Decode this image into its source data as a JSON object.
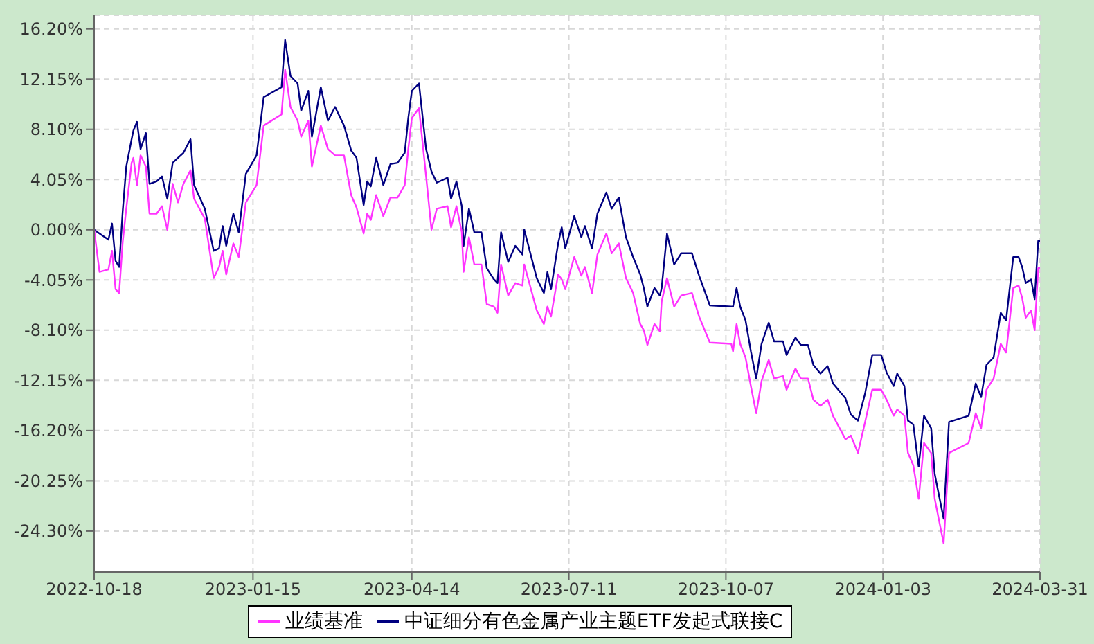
{
  "chart_data": {
    "type": "line",
    "x": [
      "2022-10-18",
      "2022-10-21",
      "2022-10-26",
      "2022-10-28",
      "2022-10-30",
      "2022-11-01",
      "2022-11-03",
      "2022-11-05",
      "2022-11-08",
      "2022-11-09",
      "2022-11-11",
      "2022-11-13",
      "2022-11-16",
      "2022-11-18",
      "2022-11-22",
      "2022-11-25",
      "2022-11-28",
      "2022-12-01",
      "2022-12-04",
      "2022-12-07",
      "2022-12-11",
      "2022-12-13",
      "2022-12-19",
      "2022-12-24",
      "2022-12-27",
      "2022-12-29",
      "2022-12-31",
      "2023-01-04",
      "2023-01-07",
      "2023-01-11",
      "2023-01-17",
      "2023-01-21",
      "2023-01-31",
      "2023-02-02",
      "2023-02-05",
      "2023-02-09",
      "2023-02-11",
      "2023-02-15",
      "2023-02-17",
      "2023-02-22",
      "2023-02-26",
      "2023-03-02",
      "2023-03-07",
      "2023-03-11",
      "2023-03-14",
      "2023-03-18",
      "2023-03-20",
      "2023-03-22",
      "2023-03-25",
      "2023-03-29",
      "2023-04-02",
      "2023-04-06",
      "2023-04-10",
      "2023-04-12",
      "2023-04-14",
      "2023-04-18",
      "2023-04-22",
      "2023-04-25",
      "2023-04-28",
      "2023-05-04",
      "2023-05-06",
      "2023-05-09",
      "2023-05-12",
      "2023-05-13",
      "2023-05-16",
      "2023-05-19",
      "2023-05-23",
      "2023-05-26",
      "2023-05-30",
      "2023-06-01",
      "2023-06-03",
      "2023-06-07",
      "2023-06-11",
      "2023-06-15",
      "2023-06-16",
      "2023-06-23",
      "2023-06-27",
      "2023-06-29",
      "2023-07-01",
      "2023-07-05",
      "2023-07-07",
      "2023-07-09",
      "2023-07-14",
      "2023-07-18",
      "2023-07-20",
      "2023-07-24",
      "2023-07-27",
      "2023-08-01",
      "2023-08-04",
      "2023-08-08",
      "2023-08-12",
      "2023-08-16",
      "2023-08-20",
      "2023-08-22",
      "2023-08-24",
      "2023-08-28",
      "2023-08-31",
      "2023-09-01",
      "2023-09-04",
      "2023-09-08",
      "2023-09-12",
      "2023-09-18",
      "2023-09-22",
      "2023-09-28",
      "2023-10-10",
      "2023-10-11",
      "2023-10-13",
      "2023-10-15",
      "2023-10-18",
      "2023-10-21",
      "2023-10-24",
      "2023-10-27",
      "2023-10-31",
      "2023-11-03",
      "2023-11-08",
      "2023-11-10",
      "2023-11-15",
      "2023-11-18",
      "2023-11-22",
      "2023-11-25",
      "2023-11-29",
      "2023-12-03",
      "2023-12-06",
      "2023-12-13",
      "2023-12-16",
      "2023-12-20",
      "2023-12-24",
      "2023-12-28",
      "2024-01-02",
      "2024-01-05",
      "2024-01-09",
      "2024-01-11",
      "2024-01-15",
      "2024-01-17",
      "2024-01-20",
      "2024-01-23",
      "2024-01-26",
      "2024-01-30",
      "2024-02-01",
      "2024-02-06",
      "2024-02-09",
      "2024-02-20",
      "2024-02-24",
      "2024-02-27",
      "2024-03-01",
      "2024-03-05",
      "2024-03-09",
      "2024-03-12",
      "2024-03-16",
      "2024-03-19",
      "2024-03-21",
      "2024-03-23",
      "2024-03-26",
      "2024-03-28",
      "2024-03-30",
      "2024-03-31"
    ],
    "series": [
      {
        "name": "中证细分有色金属产业主题ETF发起式联接C",
        "color": "#000080",
        "values": [
          0,
          -0.3,
          -0.8,
          0.5,
          -2.5,
          -3.0,
          1.5,
          5.1,
          7.3,
          8.0,
          8.7,
          6.5,
          7.8,
          3.7,
          3.9,
          4.3,
          2.5,
          5.4,
          5.8,
          6.2,
          7.3,
          3.6,
          1.7,
          -1.7,
          -1.5,
          0.3,
          -1.3,
          1.3,
          -0.2,
          4.5,
          6.0,
          10.7,
          11.5,
          15.3,
          12.4,
          11.8,
          9.6,
          11.2,
          7.5,
          11.5,
          8.8,
          9.9,
          8.4,
          6.4,
          5.8,
          2.0,
          3.9,
          3.5,
          5.8,
          3.6,
          5.3,
          5.4,
          6.2,
          9.0,
          11.2,
          11.8,
          6.5,
          4.7,
          3.8,
          4.2,
          2.5,
          3.9,
          1.9,
          -1.3,
          1.7,
          -0.2,
          -0.2,
          -3.1,
          -4.0,
          -4.3,
          -0.2,
          -2.6,
          -1.3,
          -2.0,
          0,
          -3.9,
          -5.1,
          -3.4,
          -4.8,
          -1.1,
          0.2,
          -1.5,
          1.1,
          -0.6,
          0.3,
          -1.5,
          1.3,
          3.0,
          1.7,
          2.6,
          -0.6,
          -2.2,
          -3.6,
          -4.7,
          -6.2,
          -4.7,
          -5.3,
          -4.7,
          -0.3,
          -2.8,
          -1.9,
          -1.9,
          -3.7,
          -6.1,
          -6.2,
          -6.2,
          -4.7,
          -6.2,
          -7.3,
          -9.8,
          -12.0,
          -9.2,
          -7.5,
          -9.0,
          -9.0,
          -10.1,
          -8.7,
          -9.3,
          -9.3,
          -10.9,
          -11.6,
          -11.0,
          -12.4,
          -13.6,
          -14.9,
          -15.4,
          -13.2,
          -10.1,
          -10.1,
          -11.5,
          -12.6,
          -11.6,
          -12.6,
          -15.4,
          -15.7,
          -19.1,
          -15.0,
          -16.0,
          -19.7,
          -23.3,
          -15.5,
          -15.0,
          -12.4,
          -13.5,
          -10.9,
          -10.3,
          -6.7,
          -7.3,
          -2.2,
          -2.2,
          -3.0,
          -4.3,
          -4.0,
          -5.6,
          -0.9,
          -0.9
        ]
      },
      {
        "name": "业绩基准",
        "color": "#ff33ff",
        "values": [
          0,
          -3.4,
          -3.2,
          -1.7,
          -4.8,
          -5.1,
          -1.0,
          1.7,
          5.4,
          5.8,
          3.6,
          6.0,
          5.1,
          1.3,
          1.3,
          1.9,
          0,
          3.7,
          2.2,
          3.7,
          4.8,
          2.5,
          0.9,
          -3.9,
          -3.0,
          -1.7,
          -3.6,
          -1.1,
          -2.2,
          2.2,
          3.6,
          8.4,
          9.3,
          12.9,
          9.9,
          8.8,
          7.5,
          8.8,
          5.1,
          8.4,
          6.5,
          6.0,
          6.0,
          2.8,
          1.8,
          -0.3,
          1.3,
          0.8,
          2.8,
          1.1,
          2.6,
          2.6,
          3.6,
          6.5,
          9.0,
          9.8,
          4.3,
          0,
          1.7,
          1.9,
          0.2,
          1.9,
          -0.2,
          -3.4,
          -0.6,
          -2.8,
          -2.8,
          -6.0,
          -6.2,
          -6.7,
          -2.8,
          -5.3,
          -4.3,
          -4.5,
          -2.8,
          -6.5,
          -7.6,
          -6.2,
          -7.0,
          -3.6,
          -4.0,
          -4.8,
          -2.2,
          -3.7,
          -3.0,
          -5.1,
          -2.0,
          -0.3,
          -1.9,
          -1.1,
          -3.9,
          -5.1,
          -7.6,
          -8.1,
          -9.3,
          -7.6,
          -8.2,
          -5.8,
          -3.9,
          -6.2,
          -5.3,
          -5.1,
          -7.0,
          -9.1,
          -9.2,
          -9.8,
          -7.6,
          -9.2,
          -10.3,
          -12.6,
          -14.8,
          -12.2,
          -10.5,
          -12.0,
          -11.8,
          -12.9,
          -11.2,
          -12.0,
          -12.0,
          -13.7,
          -14.2,
          -13.7,
          -15.0,
          -16.9,
          -16.6,
          -18.0,
          -15.5,
          -12.9,
          -12.9,
          -13.7,
          -15.0,
          -14.5,
          -15.0,
          -18.0,
          -19.0,
          -21.7,
          -17.2,
          -18.0,
          -21.7,
          -25.3,
          -18.0,
          -17.2,
          -14.8,
          -16.0,
          -12.9,
          -12.0,
          -9.2,
          -9.9,
          -4.7,
          -4.5,
          -5.5,
          -7.1,
          -6.5,
          -8.1,
          -3.1,
          -3.1
        ]
      }
    ],
    "xlim": [
      "2022-10-18",
      "2024-03-31"
    ],
    "xticks": [
      "2022-10-18",
      "2023-01-15",
      "2023-04-14",
      "2023-07-11",
      "2023-10-07",
      "2024-01-03",
      "2024-03-31"
    ],
    "ylim": [
      -27.6,
      17.3
    ],
    "yticks": [
      {
        "value": -24.3,
        "label": "-24.30%"
      },
      {
        "value": -20.25,
        "label": "-20.25%"
      },
      {
        "value": -16.2,
        "label": "-16.20%"
      },
      {
        "value": -12.15,
        "label": "-12.15%"
      },
      {
        "value": -8.1,
        "label": "-8.10%"
      },
      {
        "value": -4.05,
        "label": "-4.05%"
      },
      {
        "value": 0,
        "label": "0.00%"
      },
      {
        "value": 4.05,
        "label": "4.05%"
      },
      {
        "value": 8.1,
        "label": "8.10%"
      },
      {
        "value": 12.15,
        "label": "12.15%"
      },
      {
        "value": 16.2,
        "label": "16.20%"
      }
    ],
    "grid": true,
    "legend": "bottom",
    "marker": "none",
    "line_style": "solid"
  }
}
